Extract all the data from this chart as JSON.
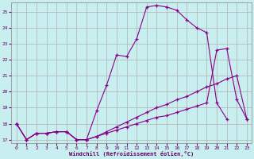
{
  "xlabel": "Windchill (Refroidissement éolien,°C)",
  "bg_color": "#c8eef0",
  "grid_color": "#b0b0b0",
  "line_color": "#880088",
  "xlim": [
    -0.5,
    23.5
  ],
  "ylim": [
    16.8,
    25.6
  ],
  "yticks": [
    17,
    18,
    19,
    20,
    21,
    22,
    23,
    24,
    25
  ],
  "xticks": [
    0,
    1,
    2,
    3,
    4,
    5,
    6,
    7,
    8,
    9,
    10,
    11,
    12,
    13,
    14,
    15,
    16,
    17,
    18,
    19,
    20,
    21,
    22,
    23
  ],
  "series": [
    {
      "x": [
        0,
        1,
        2,
        3,
        4,
        5,
        6,
        7,
        8,
        9,
        10,
        11,
        12,
        13,
        14,
        15,
        16,
        17,
        18,
        19,
        20,
        21
      ],
      "y": [
        18,
        17,
        17.4,
        17.4,
        17.5,
        17.5,
        17.0,
        17.0,
        18.8,
        20.4,
        22.3,
        22.2,
        23.3,
        25.3,
        25.4,
        25.3,
        25.1,
        24.5,
        24.0,
        23.7,
        19.3,
        18.3
      ]
    },
    {
      "x": [
        0,
        1,
        2,
        3,
        4,
        5,
        6,
        7,
        8,
        9,
        10,
        11,
        12,
        13,
        14,
        15,
        16,
        17,
        18,
        19,
        20,
        21,
        22,
        23
      ],
      "y": [
        18,
        17,
        17.4,
        17.4,
        17.5,
        17.5,
        17.0,
        17.0,
        17.2,
        17.5,
        17.8,
        18.1,
        18.4,
        18.7,
        19.0,
        19.2,
        19.5,
        19.7,
        20.0,
        20.3,
        20.5,
        20.8,
        21.0,
        18.3
      ]
    },
    {
      "x": [
        0,
        1,
        2,
        3,
        4,
        5,
        6,
        7,
        8,
        9,
        10,
        11,
        12,
        13,
        14,
        15,
        16,
        17,
        18,
        19,
        20,
        21,
        22,
        23
      ],
      "y": [
        18,
        17,
        17.4,
        17.4,
        17.5,
        17.5,
        17.0,
        17.0,
        17.2,
        17.4,
        17.6,
        17.8,
        18.0,
        18.2,
        18.4,
        18.5,
        18.7,
        18.9,
        19.1,
        19.3,
        22.6,
        22.7,
        19.5,
        18.3
      ]
    }
  ]
}
